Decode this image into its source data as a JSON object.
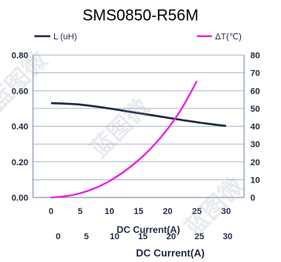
{
  "chart_data": {
    "type": "line",
    "title": "SMS0850-R56M",
    "xlabel": "DC Current(A)",
    "x": [
      0,
      2.5,
      5,
      7.5,
      10,
      12.5,
      15,
      17.5,
      20,
      22.5,
      25,
      27.5,
      30
    ],
    "series": [
      {
        "name": "L (uH)",
        "axis": "left",
        "color": "#1f2a44",
        "x": [
          0,
          2.5,
          5,
          7.5,
          10,
          12.5,
          15,
          17.5,
          20,
          22.5,
          25,
          27.5,
          30
        ],
        "values": [
          0.53,
          0.527,
          0.522,
          0.512,
          0.5,
          0.487,
          0.474,
          0.461,
          0.448,
          0.435,
          0.423,
          0.412,
          0.402
        ]
      },
      {
        "name": "ΔT(℃)",
        "axis": "right",
        "color": "#e81ee0",
        "x": [
          0,
          2.5,
          5,
          7.5,
          10,
          12.5,
          15,
          17.5,
          20,
          22.5,
          25
        ],
        "values": [
          0,
          0.7,
          2.4,
          5.2,
          9.2,
          14.5,
          21,
          28.9,
          38.6,
          50.5,
          65.4
        ]
      }
    ],
    "x_ticks": [
      "0",
      "5",
      "10",
      "15",
      "20",
      "25",
      "30"
    ],
    "xlim": [
      0,
      30
    ],
    "left_axis": {
      "ylim": [
        0,
        0.8
      ],
      "ticks": [
        "0.00",
        "0.20",
        "0.40",
        "0.60",
        "0.80"
      ]
    },
    "right_axis": {
      "ylim": [
        0,
        80
      ],
      "ticks": [
        "0",
        "10",
        "20",
        "30",
        "40",
        "50",
        "60",
        "70",
        "80"
      ]
    },
    "grid": true,
    "legend_placement": "top",
    "ghost_x_ticks": [
      "0",
      "5",
      "10",
      "15",
      "20",
      "25",
      "30"
    ],
    "ghost_xlabel": "DC Current(A)",
    "watermark_text": "蓝图微"
  }
}
